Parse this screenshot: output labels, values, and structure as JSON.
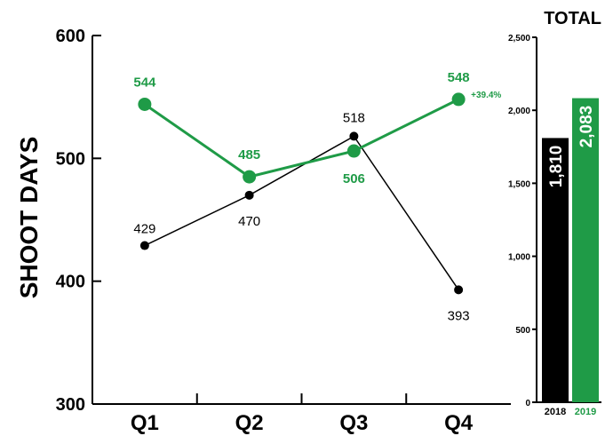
{
  "chart_data": [
    {
      "type": "line",
      "ylabel": "SHOOT DAYS",
      "categories": [
        "Q1",
        "Q2",
        "Q3",
        "Q4"
      ],
      "ylim": [
        300,
        600
      ],
      "yticks": [
        300,
        400,
        500,
        600
      ],
      "series": [
        {
          "year": "2018",
          "color": "#000000",
          "values": [
            429,
            470,
            518,
            393
          ]
        },
        {
          "year": "2019",
          "color": "#1f9b47",
          "values": [
            544,
            485,
            506,
            548
          ]
        }
      ],
      "annotation": "+39.4%"
    },
    {
      "type": "bar",
      "title": "TOTAL",
      "categories": [
        "2018",
        "2019"
      ],
      "values": [
        1810,
        2083
      ],
      "value_labels": [
        "1,810",
        "2,083"
      ],
      "colors": [
        "#000000",
        "#1f9b47"
      ],
      "ylim": [
        0,
        2500
      ],
      "yticks": [
        0,
        500,
        1000,
        1500,
        2000,
        2500
      ],
      "ytick_labels": [
        "0",
        "500",
        "1,000",
        "1,500",
        "2,000",
        "2,500"
      ]
    }
  ]
}
